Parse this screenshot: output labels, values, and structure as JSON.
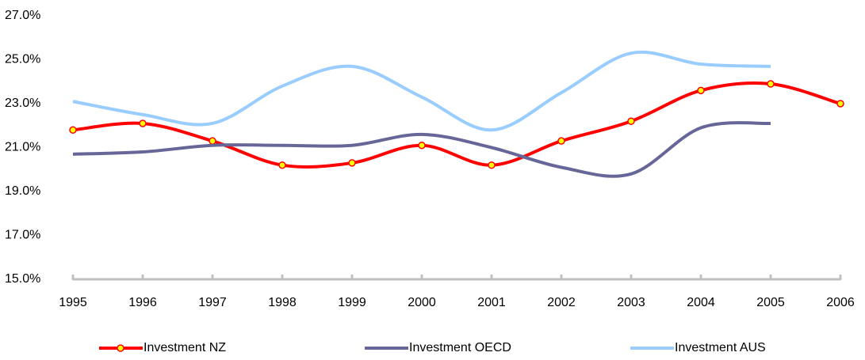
{
  "chart_data": {
    "type": "line",
    "categories": [
      "1995",
      "1996",
      "1997",
      "1998",
      "1999",
      "2000",
      "2001",
      "2002",
      "2003",
      "2004",
      "2005",
      "2006"
    ],
    "series": [
      {
        "name": "Investment NZ",
        "color": "#ff0000",
        "marker_color": "#ffff00",
        "values": [
          21.8,
          22.1,
          21.3,
          20.2,
          20.3,
          21.1,
          20.2,
          21.3,
          22.2,
          23.6,
          23.9,
          23.0
        ]
      },
      {
        "name": "Investment OECD",
        "color": "#666699",
        "values": [
          20.7,
          20.8,
          21.1,
          21.1,
          21.1,
          21.6,
          21.0,
          20.1,
          19.8,
          21.9,
          22.1,
          null
        ]
      },
      {
        "name": "Investment AUS",
        "color": "#99ccff",
        "values": [
          23.1,
          22.5,
          22.1,
          23.8,
          24.7,
          23.3,
          21.8,
          23.5,
          25.3,
          24.8,
          24.7,
          null
        ]
      }
    ],
    "ylim": [
      15,
      27
    ],
    "yticks": [
      {
        "value": 15,
        "label": "15.0%"
      },
      {
        "value": 17,
        "label": "17.0%"
      },
      {
        "value": 19,
        "label": "19.0%"
      },
      {
        "value": 21,
        "label": "21.0%"
      },
      {
        "value": 23,
        "label": "23.0%"
      },
      {
        "value": 25,
        "label": "25.0%"
      },
      {
        "value": 27,
        "label": "27.0%"
      }
    ],
    "grid": false
  }
}
